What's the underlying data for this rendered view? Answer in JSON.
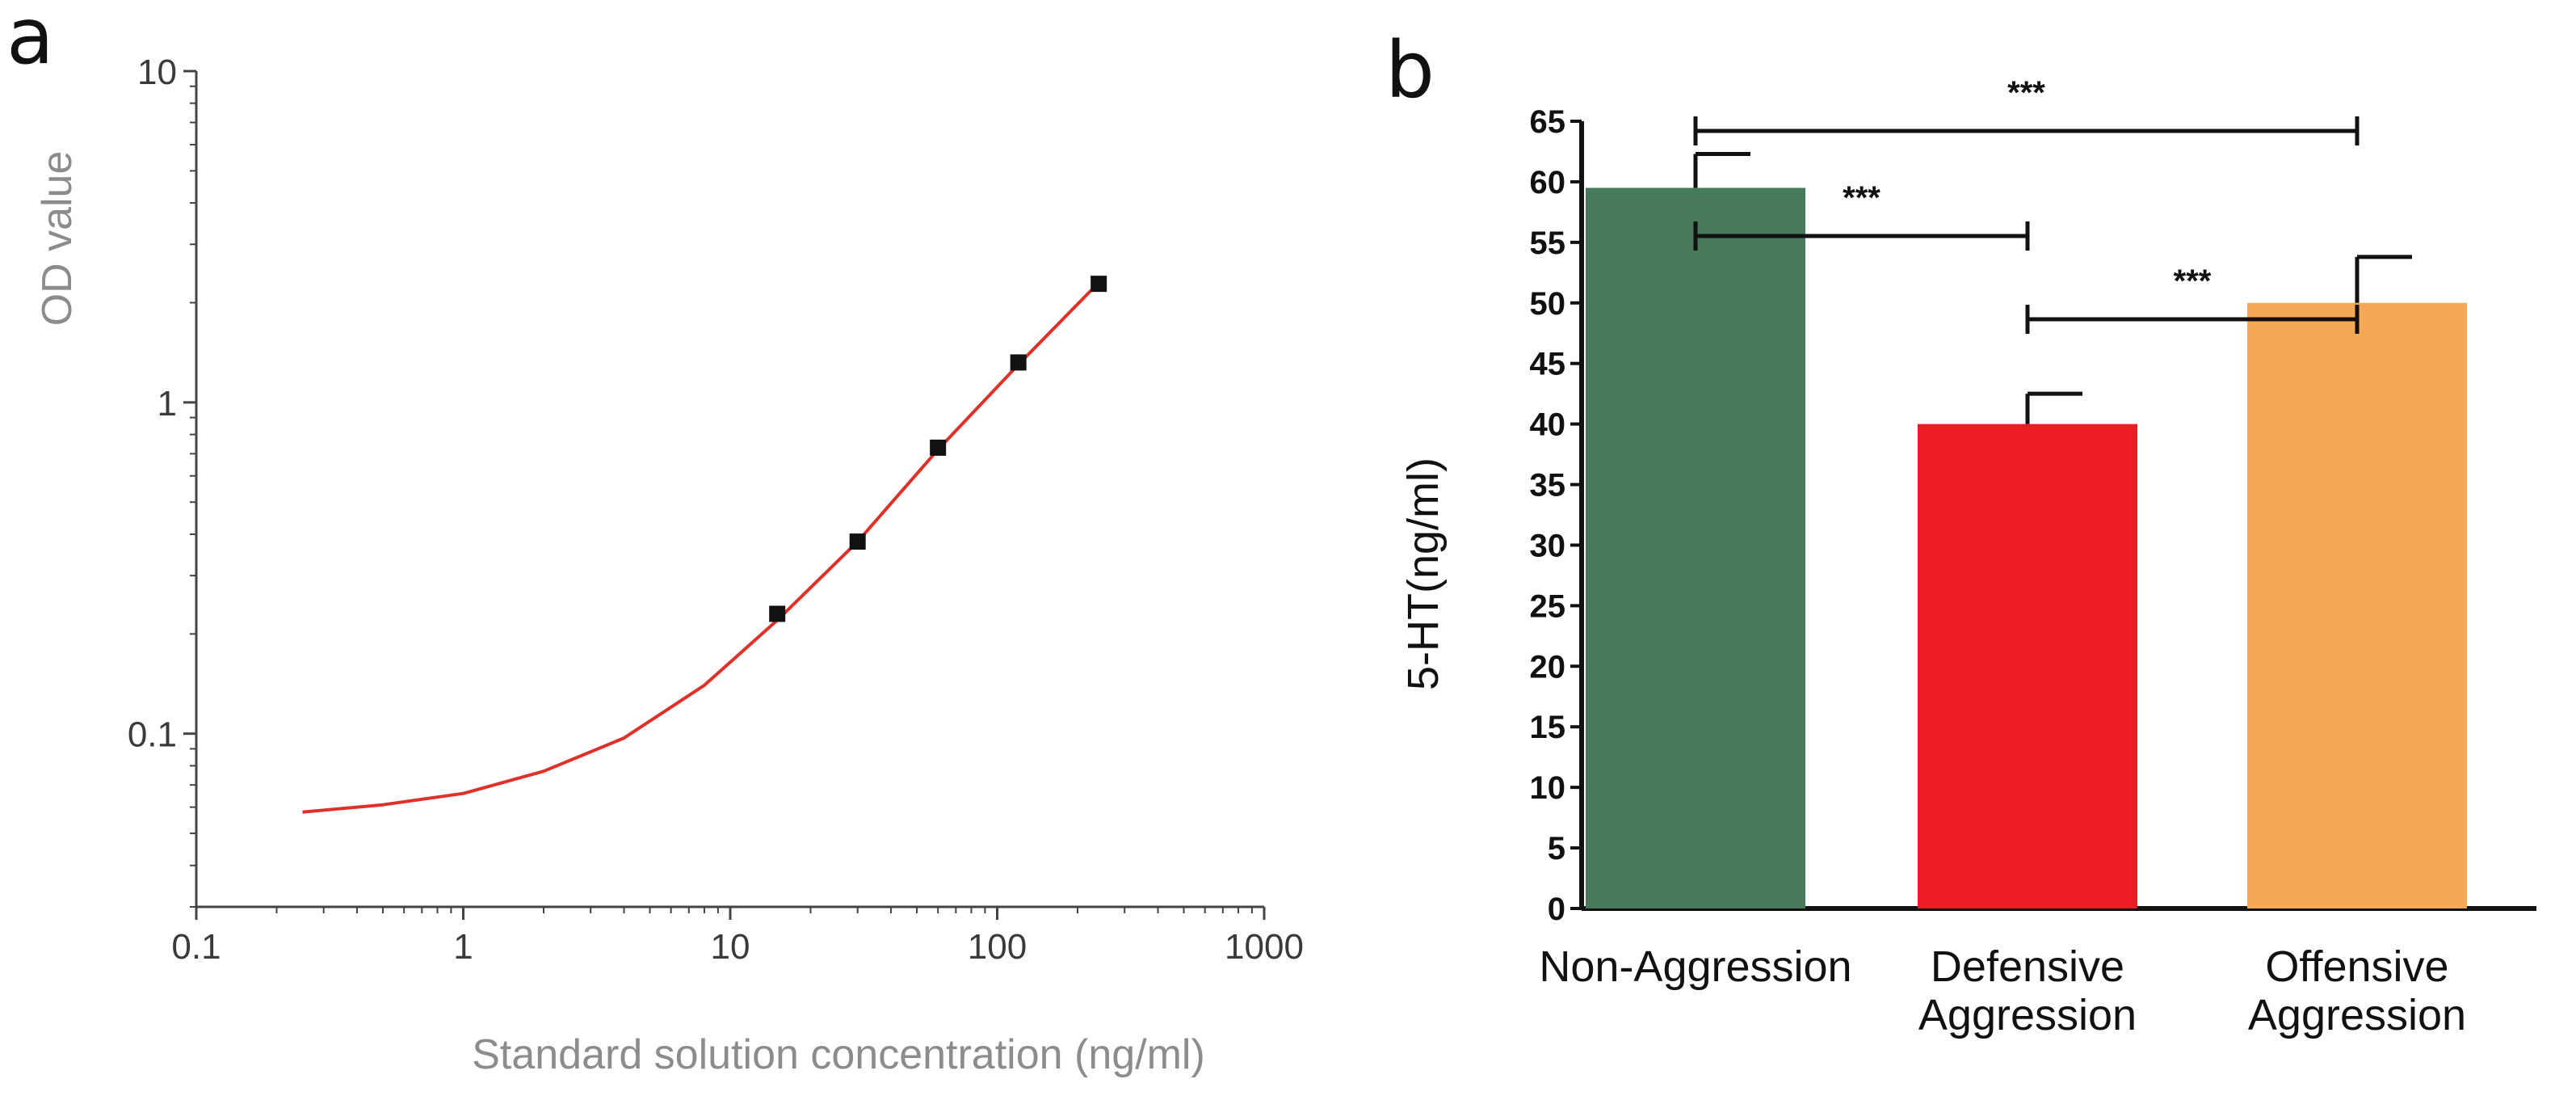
{
  "chart_data": [
    {
      "panel": "a",
      "type": "line",
      "xlabel": "Standard solution concentration (ng/ml)",
      "ylabel": "OD value",
      "x_scale": "log",
      "y_scale": "log",
      "xlim": [
        0.1,
        1000
      ],
      "ylim": [
        0.03,
        10
      ],
      "x_ticks": [
        "0.1",
        "1",
        "10",
        "100",
        "1000"
      ],
      "y_ticks": [
        "0.1",
        "1",
        "10"
      ],
      "grid": false,
      "series": [
        {
          "kind": "points",
          "x": [
            15,
            30,
            60,
            120,
            240
          ],
          "y": [
            0.23,
            0.38,
            0.73,
            1.32,
            2.28
          ],
          "color": "#111111"
        },
        {
          "kind": "fit",
          "x": [
            0.25,
            0.5,
            1,
            2,
            4,
            8,
            15,
            30,
            60,
            120,
            240
          ],
          "y": [
            0.058,
            0.061,
            0.066,
            0.077,
            0.097,
            0.14,
            0.22,
            0.38,
            0.72,
            1.3,
            2.3
          ],
          "color": "#e0302a"
        }
      ]
    },
    {
      "panel": "b",
      "type": "bar",
      "ylabel": "5-HT(ng/ml)",
      "ylim": [
        0,
        65
      ],
      "y_ticks": [
        "0",
        "5",
        "10",
        "15",
        "20",
        "25",
        "30",
        "35",
        "40",
        "45",
        "50",
        "55",
        "60",
        "65"
      ],
      "grid": false,
      "categories": [
        [
          "Non-Aggression"
        ],
        [
          "Defensive",
          "Aggression"
        ],
        [
          "Offensive",
          "Aggression"
        ]
      ],
      "values": [
        59.5,
        40,
        50
      ],
      "errors": [
        2.8,
        2.5,
        3.8
      ],
      "colors": [
        "#477a5b",
        "#ee1d25",
        "#f6a954"
      ],
      "significance": [
        {
          "between": [
            0,
            1
          ],
          "label": "***"
        },
        {
          "between": [
            1,
            2
          ],
          "label": "***"
        },
        {
          "between": [
            0,
            2
          ],
          "label": "***"
        }
      ]
    }
  ],
  "panels": {
    "a": "a",
    "b": "b"
  }
}
